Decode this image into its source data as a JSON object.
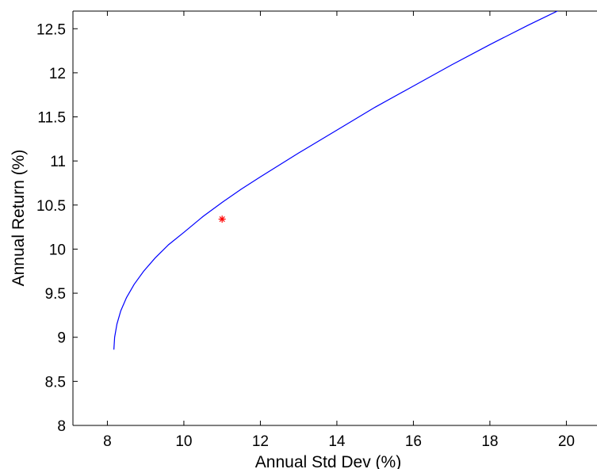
{
  "chart_data": {
    "type": "line",
    "xlabel": "Annual Std Dev (%)",
    "ylabel": "Annual Return (%)",
    "xlim": [
      7.1,
      20.8
    ],
    "ylim": [
      8,
      12.7
    ],
    "xticks": [
      8,
      10,
      12,
      14,
      16,
      18,
      20
    ],
    "yticks": [
      8,
      8.5,
      9,
      9.5,
      10,
      10.5,
      11,
      11.5,
      12,
      12.5
    ],
    "grid": false,
    "series": [
      {
        "color": "#0000ff",
        "points": [
          [
            8.17,
            8.86
          ],
          [
            8.19,
            9.0
          ],
          [
            8.25,
            9.15
          ],
          [
            8.35,
            9.3
          ],
          [
            8.5,
            9.45
          ],
          [
            8.7,
            9.6
          ],
          [
            8.95,
            9.75
          ],
          [
            9.25,
            9.9
          ],
          [
            9.6,
            10.05
          ],
          [
            10.0,
            10.19
          ],
          [
            10.5,
            10.37
          ],
          [
            11.0,
            10.53
          ],
          [
            11.5,
            10.68
          ],
          [
            12.0,
            10.82
          ],
          [
            13.0,
            11.09
          ],
          [
            14.0,
            11.35
          ],
          [
            15.0,
            11.61
          ],
          [
            16.0,
            11.85
          ],
          [
            17.0,
            12.09
          ],
          [
            18.0,
            12.32
          ],
          [
            19.0,
            12.54
          ],
          [
            20.0,
            12.75
          ],
          [
            20.8,
            12.92
          ]
        ]
      }
    ],
    "markers": [
      {
        "x": 11.0,
        "y": 10.34,
        "symbol": "asterisk",
        "color": "#ff0000"
      }
    ]
  }
}
